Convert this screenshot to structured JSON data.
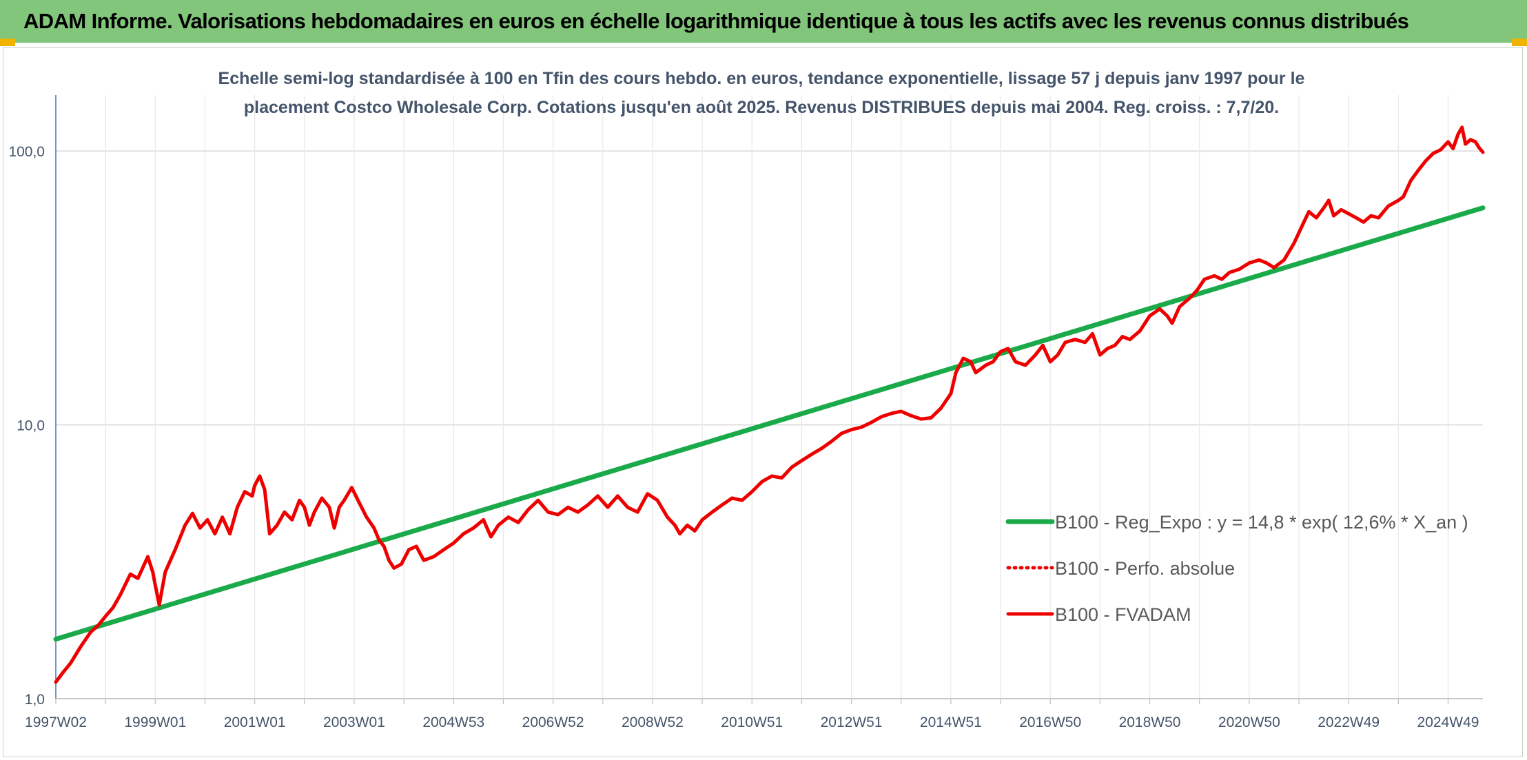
{
  "header": {
    "title": "ADAM Informe. Valorisations hebdomadaires en euros en échelle logarithmique identique à tous les actifs avec les revenus connus distribués"
  },
  "colors": {
    "banner": "#82c67b",
    "corner_marks": "#f0b400",
    "trend_line": "#1aaa4a",
    "price_line": "#ee0000",
    "grid": "#d9d9d9",
    "text": "#44546a"
  },
  "chart_data": {
    "type": "line",
    "title_lines": [
      "Echelle semi-log standardisée à 100 en Tfin des cours hebdo. en euros, tendance exponentielle, lissage 57 j depuis janv 1997 pour le",
      "placement Costco Wholesale Corp. Cotations jusqu'en août 2025. Revenus DISTRIBUES depuis mai 2004. Reg. croiss. : 7,7/20."
    ],
    "y_scale": "log",
    "ylim": [
      1,
      160
    ],
    "xlim": [
      1997.0,
      2025.7
    ],
    "y_ticks": [
      {
        "value": 1,
        "label": "1,0"
      },
      {
        "value": 10,
        "label": "10,0"
      },
      {
        "value": 100,
        "label": "100,0"
      }
    ],
    "x_ticks": [
      {
        "value": 1997.0,
        "label": "1997W02"
      },
      {
        "value": 1999.0,
        "label": "1999W01"
      },
      {
        "value": 2001.0,
        "label": "2001W01"
      },
      {
        "value": 2003.0,
        "label": "2003W01"
      },
      {
        "value": 2005.0,
        "label": "2004W53"
      },
      {
        "value": 2007.0,
        "label": "2006W52"
      },
      {
        "value": 2009.0,
        "label": "2008W52"
      },
      {
        "value": 2011.0,
        "label": "2010W51"
      },
      {
        "value": 2013.0,
        "label": "2012W51"
      },
      {
        "value": 2015.0,
        "label": "2014W51"
      },
      {
        "value": 2017.0,
        "label": "2016W50"
      },
      {
        "value": 2019.0,
        "label": "2018W50"
      },
      {
        "value": 2021.0,
        "label": "2020W50"
      },
      {
        "value": 2023.0,
        "label": "2022W49"
      },
      {
        "value": 2025.0,
        "label": "2024W49"
      }
    ],
    "grid": true,
    "legend_position": "right",
    "series": [
      {
        "name": "B100 - Reg_Expo : y = 14,8 * exp( 12,6% *  X_an )",
        "style": "solid",
        "color": "#1aaa4a",
        "points": [
          [
            1997.0,
            1.65
          ],
          [
            2025.7,
            62.0
          ]
        ]
      },
      {
        "name": "B100 - Perfo. absolue",
        "style": "dotted",
        "color": "#ee0000",
        "points": []
      },
      {
        "name": "B100 - FVADAM",
        "style": "solid",
        "color": "#ee0000",
        "points": [
          [
            1997.0,
            1.15
          ],
          [
            1997.15,
            1.25
          ],
          [
            1997.3,
            1.35
          ],
          [
            1997.5,
            1.55
          ],
          [
            1997.7,
            1.75
          ],
          [
            1997.85,
            1.85
          ],
          [
            1998.0,
            2.0
          ],
          [
            1998.15,
            2.15
          ],
          [
            1998.3,
            2.4
          ],
          [
            1998.5,
            2.85
          ],
          [
            1998.65,
            2.75
          ],
          [
            1998.85,
            3.3
          ],
          [
            1998.95,
            2.9
          ],
          [
            1999.0,
            2.6
          ],
          [
            1999.08,
            2.2
          ],
          [
            1999.2,
            2.9
          ],
          [
            1999.4,
            3.5
          ],
          [
            1999.6,
            4.3
          ],
          [
            1999.75,
            4.75
          ],
          [
            1999.9,
            4.2
          ],
          [
            2000.05,
            4.5
          ],
          [
            2000.2,
            4.0
          ],
          [
            2000.35,
            4.6
          ],
          [
            2000.5,
            4.0
          ],
          [
            2000.65,
            5.0
          ],
          [
            2000.8,
            5.7
          ],
          [
            2000.95,
            5.5
          ],
          [
            2001.0,
            6.0
          ],
          [
            2001.1,
            6.5
          ],
          [
            2001.2,
            5.8
          ],
          [
            2001.3,
            4.0
          ],
          [
            2001.45,
            4.3
          ],
          [
            2001.6,
            4.8
          ],
          [
            2001.75,
            4.5
          ],
          [
            2001.9,
            5.3
          ],
          [
            2002.0,
            5.0
          ],
          [
            2002.1,
            4.3
          ],
          [
            2002.2,
            4.8
          ],
          [
            2002.35,
            5.4
          ],
          [
            2002.5,
            5.0
          ],
          [
            2002.6,
            4.2
          ],
          [
            2002.7,
            5.0
          ],
          [
            2002.8,
            5.3
          ],
          [
            2002.95,
            5.9
          ],
          [
            2003.1,
            5.2
          ],
          [
            2003.25,
            4.6
          ],
          [
            2003.4,
            4.2
          ],
          [
            2003.5,
            3.8
          ],
          [
            2003.6,
            3.6
          ],
          [
            2003.7,
            3.2
          ],
          [
            2003.8,
            3.0
          ],
          [
            2003.95,
            3.1
          ],
          [
            2004.1,
            3.5
          ],
          [
            2004.25,
            3.6
          ],
          [
            2004.4,
            3.2
          ],
          [
            2004.6,
            3.3
          ],
          [
            2004.8,
            3.5
          ],
          [
            2005.0,
            3.7
          ],
          [
            2005.2,
            4.0
          ],
          [
            2005.4,
            4.2
          ],
          [
            2005.6,
            4.5
          ],
          [
            2005.75,
            3.9
          ],
          [
            2005.9,
            4.3
          ],
          [
            2006.1,
            4.6
          ],
          [
            2006.3,
            4.4
          ],
          [
            2006.5,
            4.9
          ],
          [
            2006.7,
            5.3
          ],
          [
            2006.9,
            4.8
          ],
          [
            2007.1,
            4.7
          ],
          [
            2007.3,
            5.0
          ],
          [
            2007.5,
            4.8
          ],
          [
            2007.7,
            5.1
          ],
          [
            2007.9,
            5.5
          ],
          [
            2008.1,
            5.0
          ],
          [
            2008.3,
            5.5
          ],
          [
            2008.5,
            5.0
          ],
          [
            2008.7,
            4.8
          ],
          [
            2008.9,
            5.6
          ],
          [
            2009.1,
            5.3
          ],
          [
            2009.3,
            4.6
          ],
          [
            2009.45,
            4.3
          ],
          [
            2009.55,
            4.0
          ],
          [
            2009.7,
            4.3
          ],
          [
            2009.85,
            4.1
          ],
          [
            2010.0,
            4.5
          ],
          [
            2010.2,
            4.8
          ],
          [
            2010.4,
            5.1
          ],
          [
            2010.6,
            5.4
          ],
          [
            2010.8,
            5.3
          ],
          [
            2011.0,
            5.7
          ],
          [
            2011.2,
            6.2
          ],
          [
            2011.4,
            6.5
          ],
          [
            2011.6,
            6.4
          ],
          [
            2011.8,
            7.0
          ],
          [
            2012.0,
            7.4
          ],
          [
            2012.2,
            7.8
          ],
          [
            2012.4,
            8.2
          ],
          [
            2012.6,
            8.7
          ],
          [
            2012.8,
            9.3
          ],
          [
            2013.0,
            9.6
          ],
          [
            2013.2,
            9.8
          ],
          [
            2013.4,
            10.2
          ],
          [
            2013.6,
            10.7
          ],
          [
            2013.8,
            11.0
          ],
          [
            2014.0,
            11.2
          ],
          [
            2014.2,
            10.8
          ],
          [
            2014.4,
            10.5
          ],
          [
            2014.6,
            10.6
          ],
          [
            2014.8,
            11.5
          ],
          [
            2015.0,
            13.0
          ],
          [
            2015.1,
            15.5
          ],
          [
            2015.25,
            17.5
          ],
          [
            2015.4,
            17.0
          ],
          [
            2015.5,
            15.5
          ],
          [
            2015.7,
            16.5
          ],
          [
            2015.85,
            17.0
          ],
          [
            2016.0,
            18.5
          ],
          [
            2016.15,
            19.0
          ],
          [
            2016.3,
            17.0
          ],
          [
            2016.5,
            16.5
          ],
          [
            2016.7,
            18.0
          ],
          [
            2016.85,
            19.5
          ],
          [
            2017.0,
            17.0
          ],
          [
            2017.15,
            18.0
          ],
          [
            2017.3,
            20.0
          ],
          [
            2017.5,
            20.5
          ],
          [
            2017.7,
            20.0
          ],
          [
            2017.85,
            21.5
          ],
          [
            2018.0,
            18.0
          ],
          [
            2018.15,
            19.0
          ],
          [
            2018.3,
            19.5
          ],
          [
            2018.45,
            21.0
          ],
          [
            2018.6,
            20.5
          ],
          [
            2018.8,
            22.0
          ],
          [
            2019.0,
            25.0
          ],
          [
            2019.2,
            26.5
          ],
          [
            2019.35,
            25.0
          ],
          [
            2019.45,
            23.5
          ],
          [
            2019.6,
            27.0
          ],
          [
            2019.8,
            29.0
          ],
          [
            2019.95,
            31.0
          ],
          [
            2020.1,
            34.0
          ],
          [
            2020.3,
            35.0
          ],
          [
            2020.45,
            34.0
          ],
          [
            2020.6,
            36.0
          ],
          [
            2020.8,
            37.0
          ],
          [
            2021.0,
            39.0
          ],
          [
            2021.2,
            40.0
          ],
          [
            2021.35,
            39.0
          ],
          [
            2021.5,
            37.5
          ],
          [
            2021.7,
            40.0
          ],
          [
            2021.9,
            46.0
          ],
          [
            2022.1,
            55.0
          ],
          [
            2022.2,
            60.0
          ],
          [
            2022.35,
            57.0
          ],
          [
            2022.5,
            62.0
          ],
          [
            2022.6,
            66.0
          ],
          [
            2022.7,
            58.0
          ],
          [
            2022.85,
            61.0
          ],
          [
            2023.0,
            59.0
          ],
          [
            2023.15,
            57.0
          ],
          [
            2023.3,
            55.0
          ],
          [
            2023.45,
            58.0
          ],
          [
            2023.6,
            57.0
          ],
          [
            2023.8,
            63.0
          ],
          [
            2024.0,
            66.0
          ],
          [
            2024.1,
            68.0
          ],
          [
            2024.25,
            78.0
          ],
          [
            2024.4,
            85.0
          ],
          [
            2024.55,
            92.0
          ],
          [
            2024.7,
            98.0
          ],
          [
            2024.85,
            101.0
          ],
          [
            2025.0,
            108.0
          ],
          [
            2025.1,
            102.0
          ],
          [
            2025.2,
            115.0
          ],
          [
            2025.28,
            122.0
          ],
          [
            2025.35,
            106.0
          ],
          [
            2025.45,
            110.0
          ],
          [
            2025.55,
            108.0
          ],
          [
            2025.62,
            103.0
          ],
          [
            2025.7,
            99.0
          ]
        ]
      }
    ]
  }
}
